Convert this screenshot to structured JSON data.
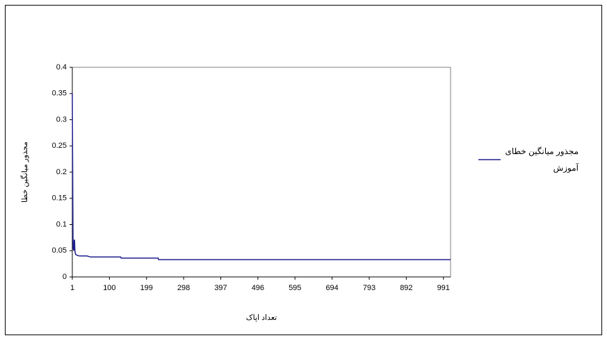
{
  "chart_data": {
    "type": "line",
    "x_label": "تعداد اپاک",
    "y_label": "مجذور میانگین خطا",
    "x": [
      1,
      2,
      3,
      5,
      6,
      7,
      8,
      9,
      10,
      12,
      15,
      20,
      40,
      50,
      130,
      131,
      230,
      231,
      1010
    ],
    "series": [
      {
        "name": "مجذور میانگین خطای آموزش",
        "color": "#1f1f8f",
        "values": [
          0.35,
          0.2,
          0.055,
          0.05,
          0.07,
          0.07,
          0.05,
          0.045,
          0.043,
          0.042,
          0.041,
          0.04,
          0.04,
          0.038,
          0.038,
          0.036,
          0.036,
          0.033,
          0.033
        ]
      }
    ],
    "xlim": [
      1,
      1010
    ],
    "xticks": [
      1,
      100,
      199,
      298,
      397,
      496,
      595,
      694,
      793,
      892,
      991
    ],
    "ylim": [
      0,
      0.4
    ],
    "yticks": [
      0,
      0.05,
      0.1,
      0.15,
      0.2,
      0.25,
      0.3,
      0.35,
      0.4
    ],
    "legend": "right"
  }
}
